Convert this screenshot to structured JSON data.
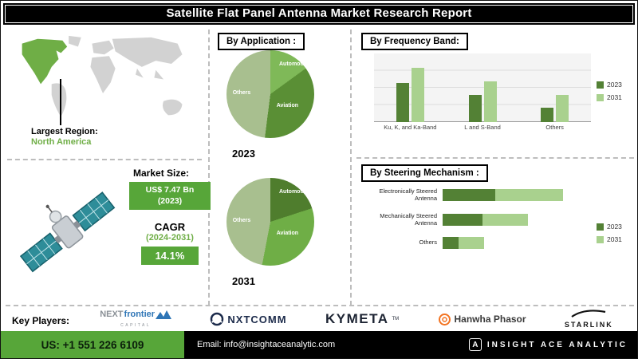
{
  "header": {
    "title": "Satellite Flat Panel Antenna Market Research Report"
  },
  "left": {
    "largest_region_label": "Largest Region:",
    "largest_region_value": "North America",
    "market_size_label": "Market Size:",
    "market_size_line1": "US$ 7.47 Bn",
    "market_size_line2": "(2023)",
    "cagr_label": "CAGR",
    "cagr_period": "(2024-2031)",
    "cagr_value": "14.1%"
  },
  "colors": {
    "accent_green": "#57a639",
    "dark_green": "#538135",
    "mid_green": "#6fae46",
    "light_green": "#a9d18e"
  },
  "chart_data": [
    {
      "type": "pie",
      "title": "By Application :",
      "year": "2023",
      "labels": [
        "Automotive",
        "Aviation",
        "Others"
      ],
      "values": [
        15,
        37,
        48
      ],
      "colors": [
        "#7fb958",
        "#5a8f35",
        "#a8bf8f"
      ]
    },
    {
      "type": "pie",
      "title": "By Application :",
      "year": "2031",
      "labels": [
        "Automotive",
        "Aviation",
        "Others"
      ],
      "values": [
        20,
        33,
        47
      ],
      "colors": [
        "#4f7d2d",
        "#6fae46",
        "#a8bf8f"
      ]
    },
    {
      "type": "bar",
      "title": "By Frequency Band:",
      "categories": [
        "Ku, K, and Ka-Band",
        "L and S-Band",
        "Others"
      ],
      "series": [
        {
          "name": "2023",
          "color": "#538135",
          "values": [
            57,
            40,
            21
          ]
        },
        {
          "name": "2031",
          "color": "#a9d18e",
          "values": [
            79,
            59,
            40
          ]
        }
      ],
      "ylim": [
        0,
        100
      ],
      "legend_position": "right",
      "grid": true
    },
    {
      "type": "bar-horizontal",
      "title": "By Steering Mechanism :",
      "categories": [
        "Electronically Steered Antenna",
        "Mechanically Steered Antenna",
        "Others"
      ],
      "series": [
        {
          "name": "2023",
          "color": "#538135",
          "values": [
            36,
            27,
            11
          ]
        },
        {
          "name": "2031",
          "color": "#a9d18e",
          "values": [
            46,
            31,
            17
          ]
        }
      ],
      "stacked": true,
      "xlim": [
        0,
        100
      ],
      "legend_position": "right"
    }
  ],
  "key_players": {
    "label": "Key Players:",
    "nextfrontier_gray": "NEXT",
    "nextfrontier_blue": "frontier",
    "nextfrontier_sub": "CAPITAL",
    "nxtcomm": "NXTCOMM",
    "kymeta": "KYMETA",
    "kymeta_tm": "TM",
    "hanwha": "Hanwha Phasor",
    "starlink": "STARLINK"
  },
  "footer": {
    "phone": "US: +1 551 226 6109",
    "email": "Email: info@insightaceanalytic.com",
    "brand": "INSIGHT ACE ANALYTIC",
    "brand_icon": "A"
  }
}
